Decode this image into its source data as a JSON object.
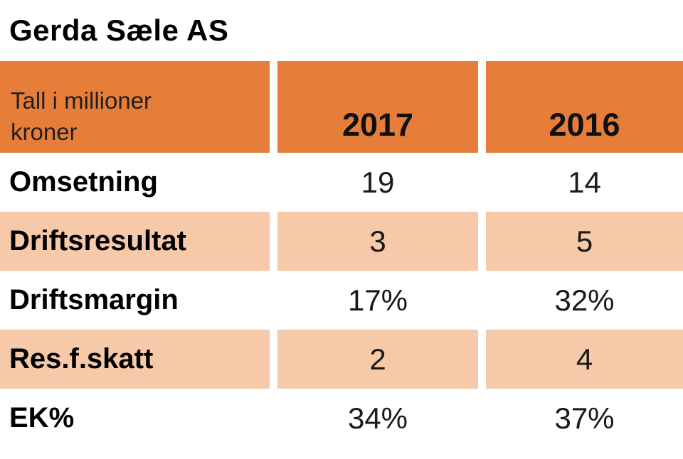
{
  "title": "Gerda Sæle AS",
  "table": {
    "unit_label": "Tall i millioner kroner",
    "year_columns": [
      "2017",
      "2016"
    ],
    "rows": [
      {
        "label": "Omsetning",
        "values": [
          "19",
          "14"
        ]
      },
      {
        "label": "Driftsresultat",
        "values": [
          "3",
          "5"
        ]
      },
      {
        "label": "Driftsmargin",
        "values": [
          "17%",
          "32%"
        ]
      },
      {
        "label": "Res.f.skatt",
        "values": [
          "2",
          "4"
        ]
      },
      {
        "label": "EK%",
        "values": [
          "34%",
          "37%"
        ]
      }
    ]
  },
  "colors": {
    "header_bg": "#E67E3A",
    "alt_row_bg": "#F6C9A8",
    "header_label_text": "#1F1F1F",
    "body_text": "#000000",
    "page_bg": "#FFFFFF"
  },
  "chart_data": {
    "type": "table",
    "title": "Gerda Sæle AS",
    "subtitle": "Tall i millioner kroner",
    "categories": [
      "2017",
      "2016"
    ],
    "series": [
      {
        "name": "Omsetning",
        "values": [
          19,
          14
        ],
        "unit": "mill. kroner"
      },
      {
        "name": "Driftsresultat",
        "values": [
          3,
          5
        ],
        "unit": "mill. kroner"
      },
      {
        "name": "Driftsmargin",
        "values": [
          "17%",
          "32%"
        ],
        "unit": "percent"
      },
      {
        "name": "Res.f.skatt",
        "values": [
          2,
          4
        ],
        "unit": "mill. kroner"
      },
      {
        "name": "EK%",
        "values": [
          "34%",
          "37%"
        ],
        "unit": "percent"
      }
    ],
    "layout": {
      "header_position": "top",
      "alternating_rows": true,
      "grid": false,
      "legend": "none"
    }
  }
}
